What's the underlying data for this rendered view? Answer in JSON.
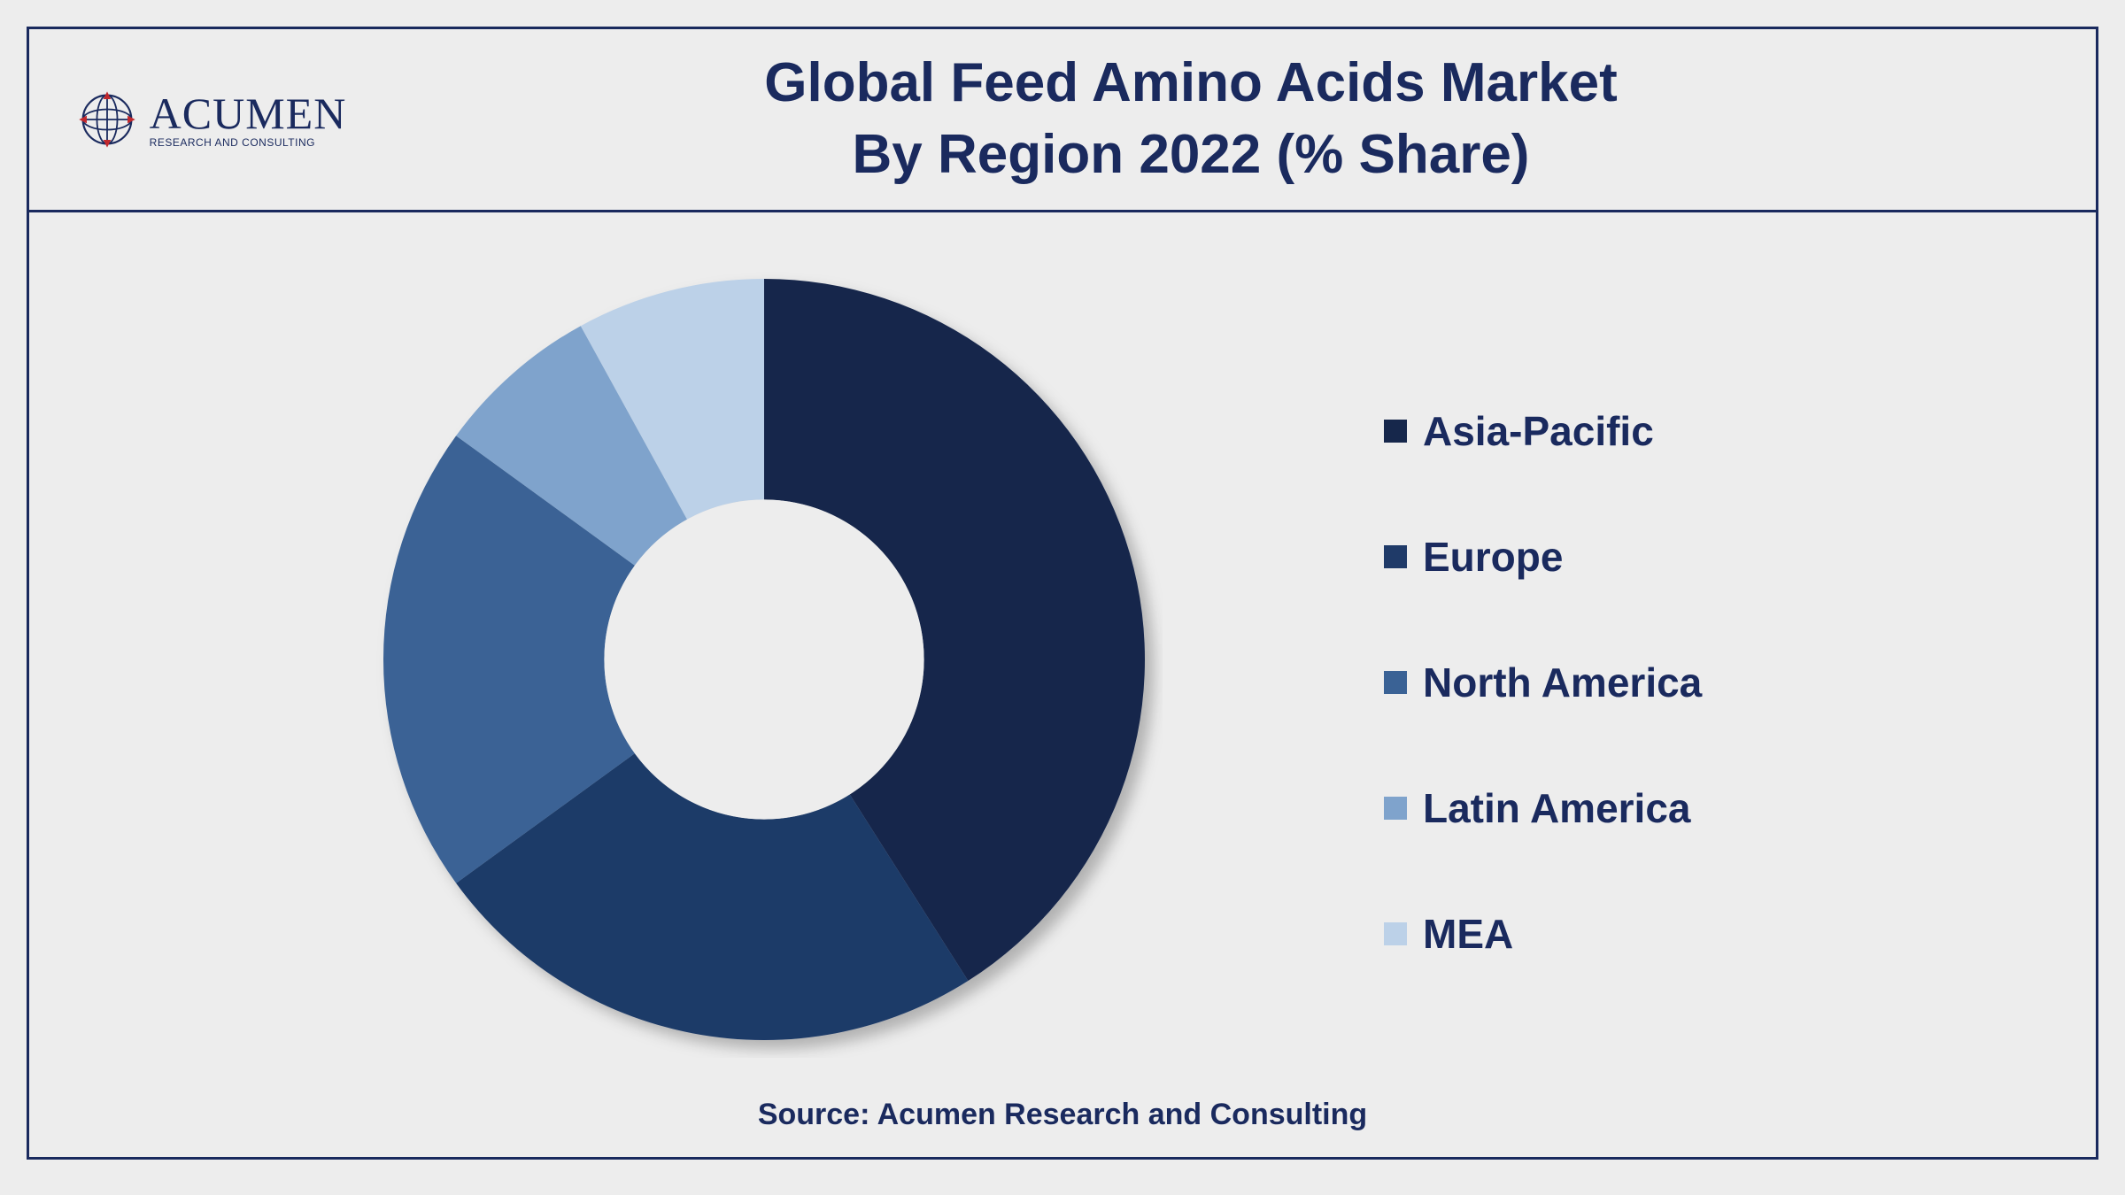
{
  "logo": {
    "main": "ACUMEN",
    "sub": "RESEARCH AND CONSULTING",
    "globe_stroke": "#1a2a5e",
    "globe_accent": "#c1282d"
  },
  "title": {
    "line1": "Global Feed Amino Acids Market",
    "line2": "By Region 2022 (% Share)",
    "color": "#1a2a5e",
    "fontsize": 62,
    "font_weight": 700
  },
  "source": "Source: Acumen Research and Consulting",
  "chart": {
    "type": "donut",
    "background_color": "#ededed",
    "inner_radius_ratio": 0.42,
    "outer_radius": 430,
    "center_fill": "#ededed",
    "shadow_color": "#00000030",
    "shadow_dx": 10,
    "shadow_dy": 10,
    "shadow_blur": 12,
    "series": [
      {
        "label": "Asia-Pacific",
        "value": 41,
        "color": "#16274b"
      },
      {
        "label": "Europe",
        "value": 24,
        "color": "#1f3a68"
      },
      {
        "label": "North America",
        "value": 20,
        "color": "#3a6295"
      },
      {
        "label": "Latin America",
        "value": 7,
        "color": "#7fa3cc"
      },
      {
        "label": "MEA",
        "value": 8,
        "color": "#bcd1e8"
      }
    ]
  },
  "legend": {
    "label_color": "#1a2a5e",
    "label_fontsize": 46,
    "swatch_size": 26
  },
  "frame": {
    "border_color": "#1a2a5e",
    "border_width": 3
  }
}
